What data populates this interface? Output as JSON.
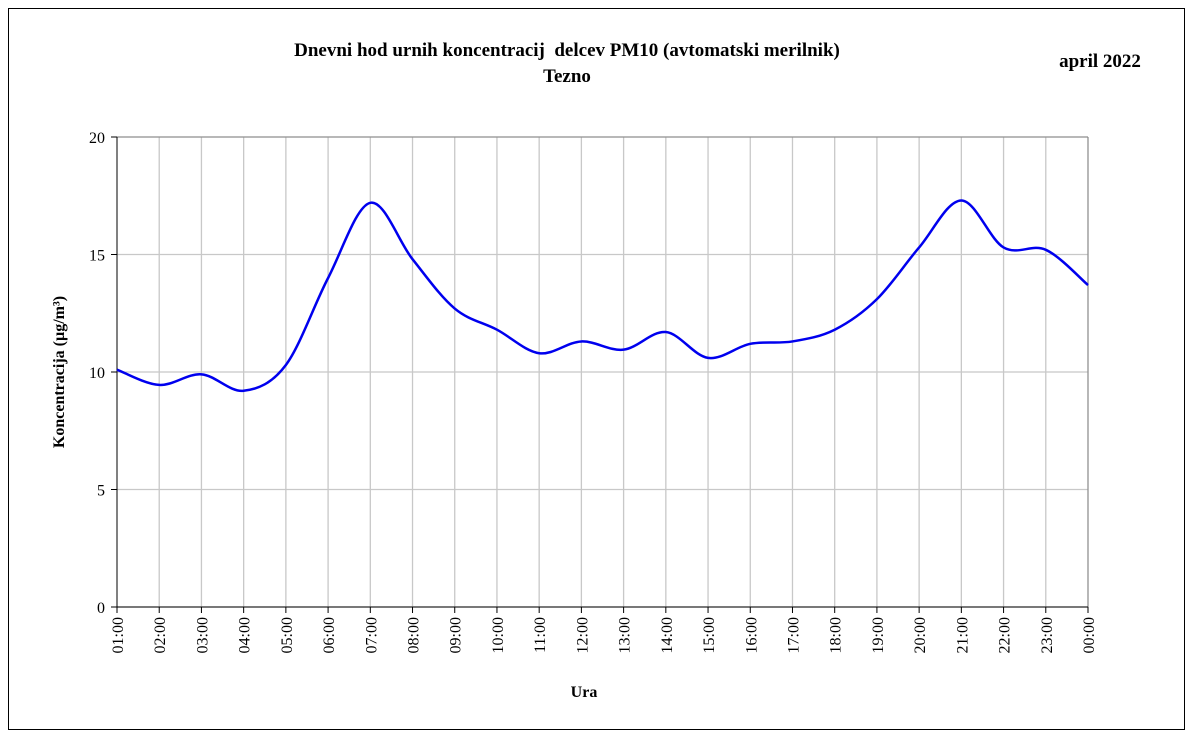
{
  "chart_data": {
    "type": "line",
    "title": "Dnevni hod urnih koncentracij  delcev PM10 (avtomatski merilnik)",
    "subtitle": "Tezno",
    "annotation": "april 2022",
    "x_label": "Ura",
    "y_label": "Koncentracija (µg/m³)",
    "categories": [
      "01:00",
      "02:00",
      "03:00",
      "04:00",
      "05:00",
      "06:00",
      "07:00",
      "08:00",
      "09:00",
      "10:00",
      "11:00",
      "12:00",
      "13:00",
      "14:00",
      "15:00",
      "16:00",
      "17:00",
      "18:00",
      "19:00",
      "20:00",
      "21:00",
      "22:00",
      "23:00",
      "00:00"
    ],
    "series": [
      {
        "color": "#0000ee",
        "values": [
          10.1,
          9.45,
          9.9,
          9.2,
          10.3,
          14.0,
          17.2,
          14.8,
          12.7,
          11.8,
          10.8,
          11.3,
          10.95,
          11.7,
          10.6,
          11.2,
          11.3,
          11.8,
          13.1,
          15.3,
          17.3,
          15.3,
          15.2,
          13.7
        ]
      }
    ],
    "ylim": [
      0,
      20
    ],
    "yticks": [
      0,
      5,
      10,
      15,
      20
    ],
    "grid": true
  }
}
